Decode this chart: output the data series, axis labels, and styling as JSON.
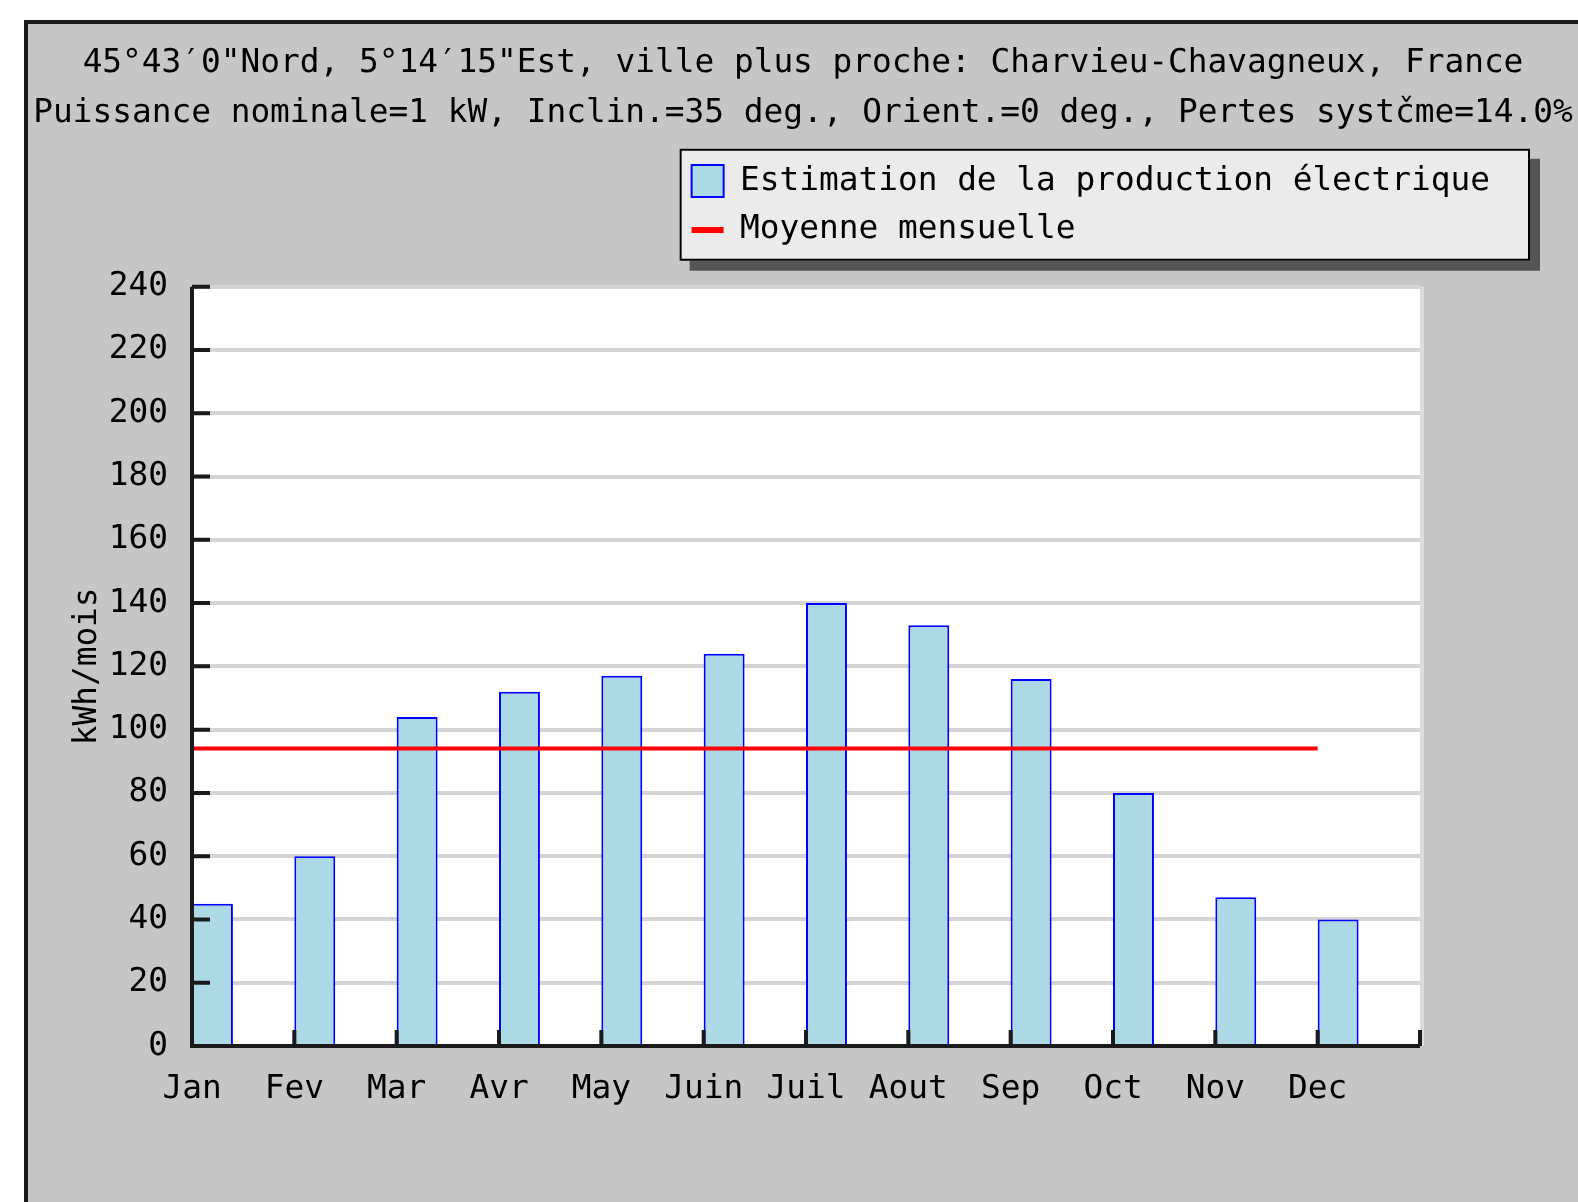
{
  "chart_data": {
    "type": "bar",
    "title": "45°43′0\"Nord, 5°14′15\"Est, ville plus proche: Charvieu-Chavagneux, France",
    "subtitle": "Puissance nominale=1 kW, Inclin.=35 deg., Orient.=0 deg., Pertes systčme=14.0%",
    "ylabel": "kWh/mois",
    "categories": [
      "Jan",
      "Fev",
      "Mar",
      "Avr",
      "May",
      "Juin",
      "Juil",
      "Aout",
      "Sep",
      "Oct",
      "Nov",
      "Dec"
    ],
    "series": [
      {
        "name": "Estimation de la production électrique",
        "color": "#add8e6",
        "values": [
          45,
          60,
          104,
          112,
          117,
          124,
          140,
          133,
          116,
          80,
          47,
          40
        ]
      },
      {
        "name": "Moyenne mensuelle",
        "type": "line",
        "color": "#ff0000",
        "values": [
          94,
          94,
          94,
          94,
          94,
          94,
          94,
          94,
          94,
          94,
          94,
          94
        ]
      }
    ],
    "ylim": [
      0,
      240
    ],
    "yticks": [
      0,
      20,
      40,
      60,
      80,
      100,
      120,
      140,
      160,
      180,
      200,
      220,
      240
    ],
    "grid": "y",
    "legend": "top right",
    "marker": "none"
  }
}
